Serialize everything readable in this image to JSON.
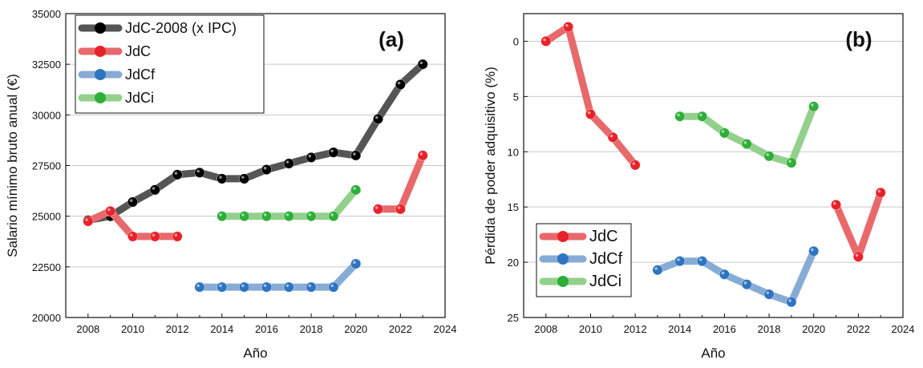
{
  "chart_data": [
    {
      "type": "line",
      "panel_label": "(a)",
      "xlabel": "Año",
      "ylabel": "Salario mínimo bruto anual (€)",
      "xlim": [
        2007,
        2024
      ],
      "ylim": [
        20000,
        35000
      ],
      "xticks": [
        2008,
        2010,
        2012,
        2014,
        2016,
        2018,
        2020,
        2022,
        2024
      ],
      "yticks": [
        20000,
        22500,
        25000,
        27500,
        30000,
        32500,
        35000
      ],
      "y_inverted": false,
      "grid": "horizontal",
      "legend_position": "top-left",
      "series": [
        {
          "name": "JdC-2008 (x IPC)",
          "color": "#555555",
          "marker_color": "#000000",
          "segments": [
            [
              [
                2008,
                24800
              ],
              [
                2009,
                25000
              ],
              [
                2010,
                25700
              ],
              [
                2011,
                26300
              ],
              [
                2012,
                27050
              ],
              [
                2013,
                27150
              ],
              [
                2014,
                26850
              ],
              [
                2015,
                26850
              ],
              [
                2016,
                27300
              ],
              [
                2017,
                27600
              ],
              [
                2018,
                27900
              ],
              [
                2019,
                28150
              ],
              [
                2020,
                28000
              ],
              [
                2021,
                29800
              ],
              [
                2022,
                31500
              ],
              [
                2023,
                32500
              ]
            ]
          ]
        },
        {
          "name": "JdC",
          "color": "#e8696c",
          "marker_color": "#e8222a",
          "segments": [
            [
              [
                2008,
                24750
              ],
              [
                2009,
                25250
              ],
              [
                2010,
                24000
              ],
              [
                2011,
                24000
              ],
              [
                2012,
                24000
              ]
            ],
            [
              [
                2021,
                25350
              ],
              [
                2022,
                25350
              ],
              [
                2023,
                28000
              ]
            ]
          ]
        },
        {
          "name": "JdCf",
          "color": "#86acd6",
          "marker_color": "#2e74c0",
          "segments": [
            [
              [
                2013,
                21500
              ],
              [
                2014,
                21500
              ],
              [
                2015,
                21500
              ],
              [
                2016,
                21500
              ],
              [
                2017,
                21500
              ],
              [
                2018,
                21500
              ],
              [
                2019,
                21500
              ],
              [
                2020,
                22650
              ]
            ]
          ]
        },
        {
          "name": "JdCi",
          "color": "#93d08c",
          "marker_color": "#2fae3a",
          "segments": [
            [
              [
                2014,
                25000
              ],
              [
                2015,
                25000
              ],
              [
                2016,
                25000
              ],
              [
                2017,
                25000
              ],
              [
                2018,
                25000
              ],
              [
                2019,
                25000
              ],
              [
                2020,
                26300
              ]
            ]
          ]
        }
      ]
    },
    {
      "type": "line",
      "panel_label": "(b)",
      "xlabel": "Año",
      "ylabel": "Pérdida de poder adquisitivo (%)",
      "xlim": [
        2007,
        2024
      ],
      "ylim": [
        25,
        -2.5
      ],
      "xticks": [
        2008,
        2010,
        2012,
        2014,
        2016,
        2018,
        2020,
        2022,
        2024
      ],
      "yticks": [
        0,
        5,
        10,
        15,
        20,
        25
      ],
      "y_inverted": true,
      "grid": "horizontal",
      "legend_position": "bottom-left",
      "series": [
        {
          "name": "JdC",
          "color": "#e8696c",
          "marker_color": "#e8222a",
          "segments": [
            [
              [
                2008,
                0.0
              ],
              [
                2009,
                -1.3
              ],
              [
                2010,
                6.6
              ],
              [
                2011,
                8.7
              ],
              [
                2012,
                11.2
              ]
            ],
            [
              [
                2021,
                14.8
              ],
              [
                2022,
                19.5
              ],
              [
                2023,
                13.7
              ]
            ]
          ]
        },
        {
          "name": "JdCf",
          "color": "#86acd6",
          "marker_color": "#2e74c0",
          "segments": [
            [
              [
                2013,
                20.7
              ],
              [
                2014,
                19.9
              ],
              [
                2015,
                19.9
              ],
              [
                2016,
                21.1
              ],
              [
                2017,
                22.0
              ],
              [
                2018,
                22.9
              ],
              [
                2019,
                23.6
              ],
              [
                2020,
                19.0
              ]
            ]
          ]
        },
        {
          "name": "JdCi",
          "color": "#93d08c",
          "marker_color": "#2fae3a",
          "segments": [
            [
              [
                2014,
                6.8
              ],
              [
                2015,
                6.8
              ],
              [
                2016,
                8.3
              ],
              [
                2017,
                9.3
              ],
              [
                2018,
                10.4
              ],
              [
                2019,
                11.0
              ],
              [
                2020,
                5.9
              ]
            ]
          ]
        }
      ]
    }
  ]
}
